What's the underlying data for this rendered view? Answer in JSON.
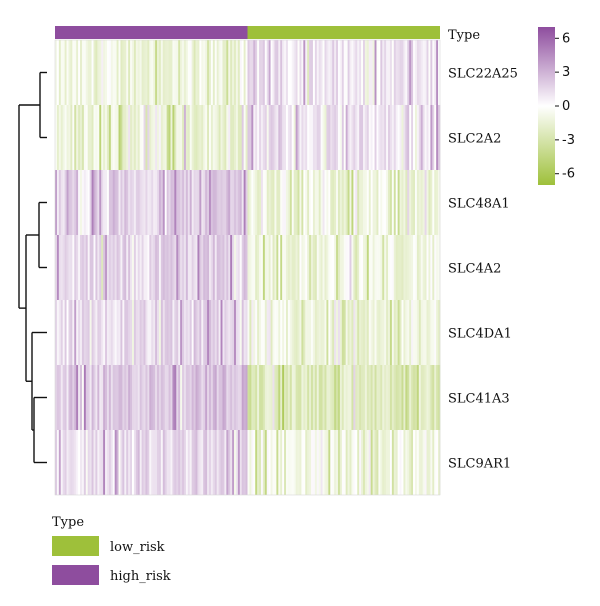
{
  "chart_data": {
    "type": "heatmap",
    "title": "",
    "rows": [
      "SLC22A25",
      "SLC2A2",
      "SLC48A1",
      "SLC4A2",
      "SLC4DA1",
      "SLC41A3",
      "SLC9AR1"
    ],
    "annotation": {
      "label": "Type",
      "groups": [
        {
          "name": "high_risk",
          "color": "#8e4d9e",
          "fraction": 0.5
        },
        {
          "name": "low_risk",
          "color": "#9ec03a",
          "fraction": 0.5
        }
      ]
    },
    "row_group_means": [
      {
        "row": "SLC22A25",
        "high_risk": -1.2,
        "low_risk": 1.0
      },
      {
        "row": "SLC2A2",
        "high_risk": -1.3,
        "low_risk": 1.1
      },
      {
        "row": "SLC48A1",
        "high_risk": 1.3,
        "low_risk": -1.2
      },
      {
        "row": "SLC4A2",
        "high_risk": 1.2,
        "low_risk": -1.0
      },
      {
        "row": "SLC4DA1",
        "high_risk": 1.0,
        "low_risk": -1.3
      },
      {
        "row": "SLC41A3",
        "high_risk": 1.8,
        "low_risk": -2.3
      },
      {
        "row": "SLC9AR1",
        "high_risk": 1.0,
        "low_risk": -0.8
      }
    ],
    "color_scale": {
      "min": -7,
      "max": 7,
      "ticks": [
        "6",
        "3",
        "0",
        "-3",
        "-6"
      ],
      "tick_values": [
        6,
        3,
        0,
        -3,
        -6
      ],
      "low_color": "#9ec03a",
      "mid_color": "#ffffff",
      "high_color": "#8e4d9e"
    },
    "legend": {
      "title": "Type",
      "items": [
        {
          "label": "low_risk",
          "color": "#9ec03a"
        },
        {
          "label": "high_risk",
          "color": "#8e4d9e"
        }
      ]
    }
  }
}
